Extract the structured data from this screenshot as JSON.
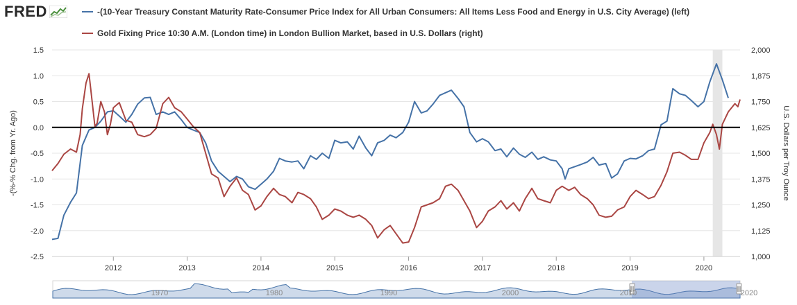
{
  "logo": {
    "text": "FRED"
  },
  "colors": {
    "series1": "#4572a7",
    "series2": "#aa4643",
    "recession": "#e6e6e6",
    "grid": "#e6e6e6",
    "navigator": "#a6bcd8",
    "navigator_line": "#4572a7"
  },
  "chart_data": {
    "type": "line",
    "title": "",
    "xlabel": "",
    "x_ticks": [
      2012,
      2013,
      2014,
      2015,
      2016,
      2017,
      2018,
      2019,
      2020
    ],
    "x_range": [
      2011.17,
      2020.49
    ],
    "shaded_period": [
      2020.12,
      2020.25
    ],
    "y_left": {
      "label": "-(%-% Chg. from Yr. Ago)",
      "range": [
        -2.5,
        1.5
      ],
      "ticks": [
        "1.5",
        "1.0",
        "0.5",
        "0.0",
        "-0.5",
        "-1.0",
        "-1.5",
        "-2.0",
        "-2.5"
      ],
      "zero_line": true
    },
    "y_right": {
      "label": "U.S. Dollars per Troy Ounce",
      "range": [
        1000,
        2000
      ],
      "ticks": [
        "2,000",
        "1,875",
        "1,750",
        "1,625",
        "1,500",
        "1,375",
        "1,250",
        "1,125",
        "1,000"
      ]
    },
    "series": [
      {
        "name": "-(10-Year Treasury Constant Maturity Rate-Consumer Price Index for All Urban Consumers: All Items Less Food and Energy in U.S. City Average) (left)",
        "axis": "left",
        "points": [
          [
            2011.17,
            -2.17
          ],
          [
            2011.25,
            -2.15
          ],
          [
            2011.33,
            -1.7
          ],
          [
            2011.42,
            -1.45
          ],
          [
            2011.5,
            -1.27
          ],
          [
            2011.58,
            -0.35
          ],
          [
            2011.67,
            -0.05
          ],
          [
            2011.75,
            0.0
          ],
          [
            2011.83,
            0.12
          ],
          [
            2011.92,
            0.3
          ],
          [
            2012.0,
            0.32
          ],
          [
            2012.08,
            0.22
          ],
          [
            2012.17,
            0.1
          ],
          [
            2012.25,
            0.25
          ],
          [
            2012.33,
            0.45
          ],
          [
            2012.42,
            0.57
          ],
          [
            2012.5,
            0.58
          ],
          [
            2012.58,
            0.25
          ],
          [
            2012.67,
            0.3
          ],
          [
            2012.75,
            0.25
          ],
          [
            2012.83,
            0.3
          ],
          [
            2012.92,
            0.15
          ],
          [
            2013.0,
            0.0
          ],
          [
            2013.08,
            -0.05
          ],
          [
            2013.17,
            -0.1
          ],
          [
            2013.25,
            -0.3
          ],
          [
            2013.33,
            -0.65
          ],
          [
            2013.42,
            -0.85
          ],
          [
            2013.5,
            -0.95
          ],
          [
            2013.58,
            -1.05
          ],
          [
            2013.67,
            -0.95
          ],
          [
            2013.75,
            -1.0
          ],
          [
            2013.83,
            -1.15
          ],
          [
            2013.92,
            -1.2
          ],
          [
            2014.0,
            -1.1
          ],
          [
            2014.08,
            -1.0
          ],
          [
            2014.17,
            -0.85
          ],
          [
            2014.25,
            -0.6
          ],
          [
            2014.33,
            -0.65
          ],
          [
            2014.42,
            -0.67
          ],
          [
            2014.5,
            -0.65
          ],
          [
            2014.58,
            -0.8
          ],
          [
            2014.67,
            -0.55
          ],
          [
            2014.75,
            -0.62
          ],
          [
            2014.83,
            -0.5
          ],
          [
            2014.92,
            -0.6
          ],
          [
            2015.0,
            -0.25
          ],
          [
            2015.08,
            -0.3
          ],
          [
            2015.17,
            -0.28
          ],
          [
            2015.25,
            -0.42
          ],
          [
            2015.33,
            -0.17
          ],
          [
            2015.42,
            -0.4
          ],
          [
            2015.5,
            -0.55
          ],
          [
            2015.58,
            -0.3
          ],
          [
            2015.67,
            -0.25
          ],
          [
            2015.75,
            -0.15
          ],
          [
            2015.83,
            -0.2
          ],
          [
            2015.92,
            -0.1
          ],
          [
            2016.0,
            0.1
          ],
          [
            2016.08,
            0.5
          ],
          [
            2016.17,
            0.28
          ],
          [
            2016.25,
            0.32
          ],
          [
            2016.33,
            0.45
          ],
          [
            2016.42,
            0.62
          ],
          [
            2016.5,
            0.67
          ],
          [
            2016.58,
            0.72
          ],
          [
            2016.67,
            0.56
          ],
          [
            2016.75,
            0.4
          ],
          [
            2016.83,
            -0.1
          ],
          [
            2016.92,
            -0.28
          ],
          [
            2017.0,
            -0.22
          ],
          [
            2017.08,
            -0.28
          ],
          [
            2017.17,
            -0.45
          ],
          [
            2017.25,
            -0.42
          ],
          [
            2017.33,
            -0.57
          ],
          [
            2017.42,
            -0.4
          ],
          [
            2017.5,
            -0.52
          ],
          [
            2017.58,
            -0.58
          ],
          [
            2017.67,
            -0.48
          ],
          [
            2017.75,
            -0.62
          ],
          [
            2017.83,
            -0.57
          ],
          [
            2017.92,
            -0.63
          ],
          [
            2018.0,
            -0.65
          ],
          [
            2018.08,
            -0.8
          ],
          [
            2018.12,
            -1.0
          ],
          [
            2018.17,
            -0.8
          ],
          [
            2018.25,
            -0.76
          ],
          [
            2018.33,
            -0.72
          ],
          [
            2018.42,
            -0.67
          ],
          [
            2018.5,
            -0.58
          ],
          [
            2018.58,
            -0.73
          ],
          [
            2018.67,
            -0.7
          ],
          [
            2018.75,
            -0.98
          ],
          [
            2018.83,
            -0.9
          ],
          [
            2018.92,
            -0.65
          ],
          [
            2019.0,
            -0.6
          ],
          [
            2019.08,
            -0.61
          ],
          [
            2019.17,
            -0.55
          ],
          [
            2019.25,
            -0.45
          ],
          [
            2019.33,
            -0.42
          ],
          [
            2019.42,
            0.05
          ],
          [
            2019.5,
            0.12
          ],
          [
            2019.58,
            0.75
          ],
          [
            2019.67,
            0.65
          ],
          [
            2019.75,
            0.62
          ],
          [
            2019.83,
            0.52
          ],
          [
            2019.92,
            0.4
          ],
          [
            2020.0,
            0.5
          ],
          [
            2020.08,
            0.88
          ],
          [
            2020.17,
            1.23
          ],
          [
            2020.25,
            0.92
          ],
          [
            2020.33,
            0.57
          ]
        ]
      },
      {
        "name": "Gold Fixing Price 10:30 A.M. (London time) in London Bullion Market, based in U.S. Dollars (right)",
        "axis": "right",
        "points": [
          [
            2011.17,
            1415
          ],
          [
            2011.25,
            1450
          ],
          [
            2011.33,
            1495
          ],
          [
            2011.42,
            1520
          ],
          [
            2011.5,
            1505
          ],
          [
            2011.55,
            1590
          ],
          [
            2011.58,
            1715
          ],
          [
            2011.63,
            1840
          ],
          [
            2011.67,
            1885
          ],
          [
            2011.7,
            1790
          ],
          [
            2011.75,
            1630
          ],
          [
            2011.78,
            1645
          ],
          [
            2011.83,
            1750
          ],
          [
            2011.88,
            1700
          ],
          [
            2011.92,
            1590
          ],
          [
            2011.96,
            1640
          ],
          [
            2012.0,
            1720
          ],
          [
            2012.08,
            1745
          ],
          [
            2012.17,
            1660
          ],
          [
            2012.25,
            1650
          ],
          [
            2012.33,
            1590
          ],
          [
            2012.42,
            1580
          ],
          [
            2012.5,
            1590
          ],
          [
            2012.58,
            1620
          ],
          [
            2012.67,
            1740
          ],
          [
            2012.75,
            1770
          ],
          [
            2012.83,
            1720
          ],
          [
            2012.92,
            1700
          ],
          [
            2013.0,
            1665
          ],
          [
            2013.08,
            1630
          ],
          [
            2013.17,
            1600
          ],
          [
            2013.25,
            1500
          ],
          [
            2013.33,
            1400
          ],
          [
            2013.42,
            1380
          ],
          [
            2013.5,
            1290
          ],
          [
            2013.58,
            1340
          ],
          [
            2013.67,
            1380
          ],
          [
            2013.75,
            1320
          ],
          [
            2013.83,
            1300
          ],
          [
            2013.92,
            1225
          ],
          [
            2014.0,
            1245
          ],
          [
            2014.08,
            1290
          ],
          [
            2014.17,
            1330
          ],
          [
            2014.25,
            1300
          ],
          [
            2014.33,
            1290
          ],
          [
            2014.42,
            1260
          ],
          [
            2014.5,
            1310
          ],
          [
            2014.58,
            1300
          ],
          [
            2014.67,
            1280
          ],
          [
            2014.75,
            1240
          ],
          [
            2014.83,
            1180
          ],
          [
            2014.92,
            1200
          ],
          [
            2015.0,
            1230
          ],
          [
            2015.08,
            1220
          ],
          [
            2015.17,
            1200
          ],
          [
            2015.25,
            1190
          ],
          [
            2015.33,
            1200
          ],
          [
            2015.42,
            1180
          ],
          [
            2015.5,
            1150
          ],
          [
            2015.58,
            1090
          ],
          [
            2015.67,
            1130
          ],
          [
            2015.75,
            1150
          ],
          [
            2015.83,
            1110
          ],
          [
            2015.92,
            1065
          ],
          [
            2016.0,
            1070
          ],
          [
            2016.08,
            1140
          ],
          [
            2016.17,
            1240
          ],
          [
            2016.25,
            1250
          ],
          [
            2016.33,
            1260
          ],
          [
            2016.42,
            1280
          ],
          [
            2016.5,
            1340
          ],
          [
            2016.58,
            1350
          ],
          [
            2016.67,
            1320
          ],
          [
            2016.75,
            1270
          ],
          [
            2016.83,
            1220
          ],
          [
            2016.92,
            1140
          ],
          [
            2017.0,
            1170
          ],
          [
            2017.08,
            1220
          ],
          [
            2017.17,
            1240
          ],
          [
            2017.25,
            1270
          ],
          [
            2017.33,
            1230
          ],
          [
            2017.42,
            1260
          ],
          [
            2017.5,
            1220
          ],
          [
            2017.58,
            1280
          ],
          [
            2017.67,
            1330
          ],
          [
            2017.75,
            1280
          ],
          [
            2017.83,
            1270
          ],
          [
            2017.92,
            1260
          ],
          [
            2018.0,
            1320
          ],
          [
            2018.08,
            1340
          ],
          [
            2018.17,
            1320
          ],
          [
            2018.25,
            1335
          ],
          [
            2018.33,
            1300
          ],
          [
            2018.42,
            1280
          ],
          [
            2018.5,
            1250
          ],
          [
            2018.58,
            1200
          ],
          [
            2018.67,
            1190
          ],
          [
            2018.75,
            1195
          ],
          [
            2018.83,
            1225
          ],
          [
            2018.92,
            1240
          ],
          [
            2019.0,
            1290
          ],
          [
            2019.08,
            1320
          ],
          [
            2019.17,
            1300
          ],
          [
            2019.25,
            1280
          ],
          [
            2019.33,
            1290
          ],
          [
            2019.42,
            1345
          ],
          [
            2019.5,
            1410
          ],
          [
            2019.58,
            1500
          ],
          [
            2019.67,
            1505
          ],
          [
            2019.75,
            1490
          ],
          [
            2019.83,
            1470
          ],
          [
            2019.92,
            1470
          ],
          [
            2020.0,
            1550
          ],
          [
            2020.08,
            1600
          ],
          [
            2020.12,
            1640
          ],
          [
            2020.17,
            1590
          ],
          [
            2020.21,
            1520
          ],
          [
            2020.25,
            1640
          ],
          [
            2020.33,
            1700
          ],
          [
            2020.42,
            1740
          ],
          [
            2020.46,
            1725
          ],
          [
            2020.49,
            1760
          ]
        ]
      }
    ],
    "navigator": {
      "labels": [
        "1970",
        "1980",
        "1990",
        "2000",
        "2010",
        "2020"
      ]
    }
  },
  "legend": [
    {
      "text": "-(10-Year Treasury Constant Maturity Rate-Consumer Price Index for All Urban Consumers: All Items Less Food and Energy in U.S. City Average) (left)"
    },
    {
      "text": "Gold Fixing Price 10:30 A.M. (London time) in London Bullion Market, based in U.S. Dollars (right)"
    }
  ]
}
